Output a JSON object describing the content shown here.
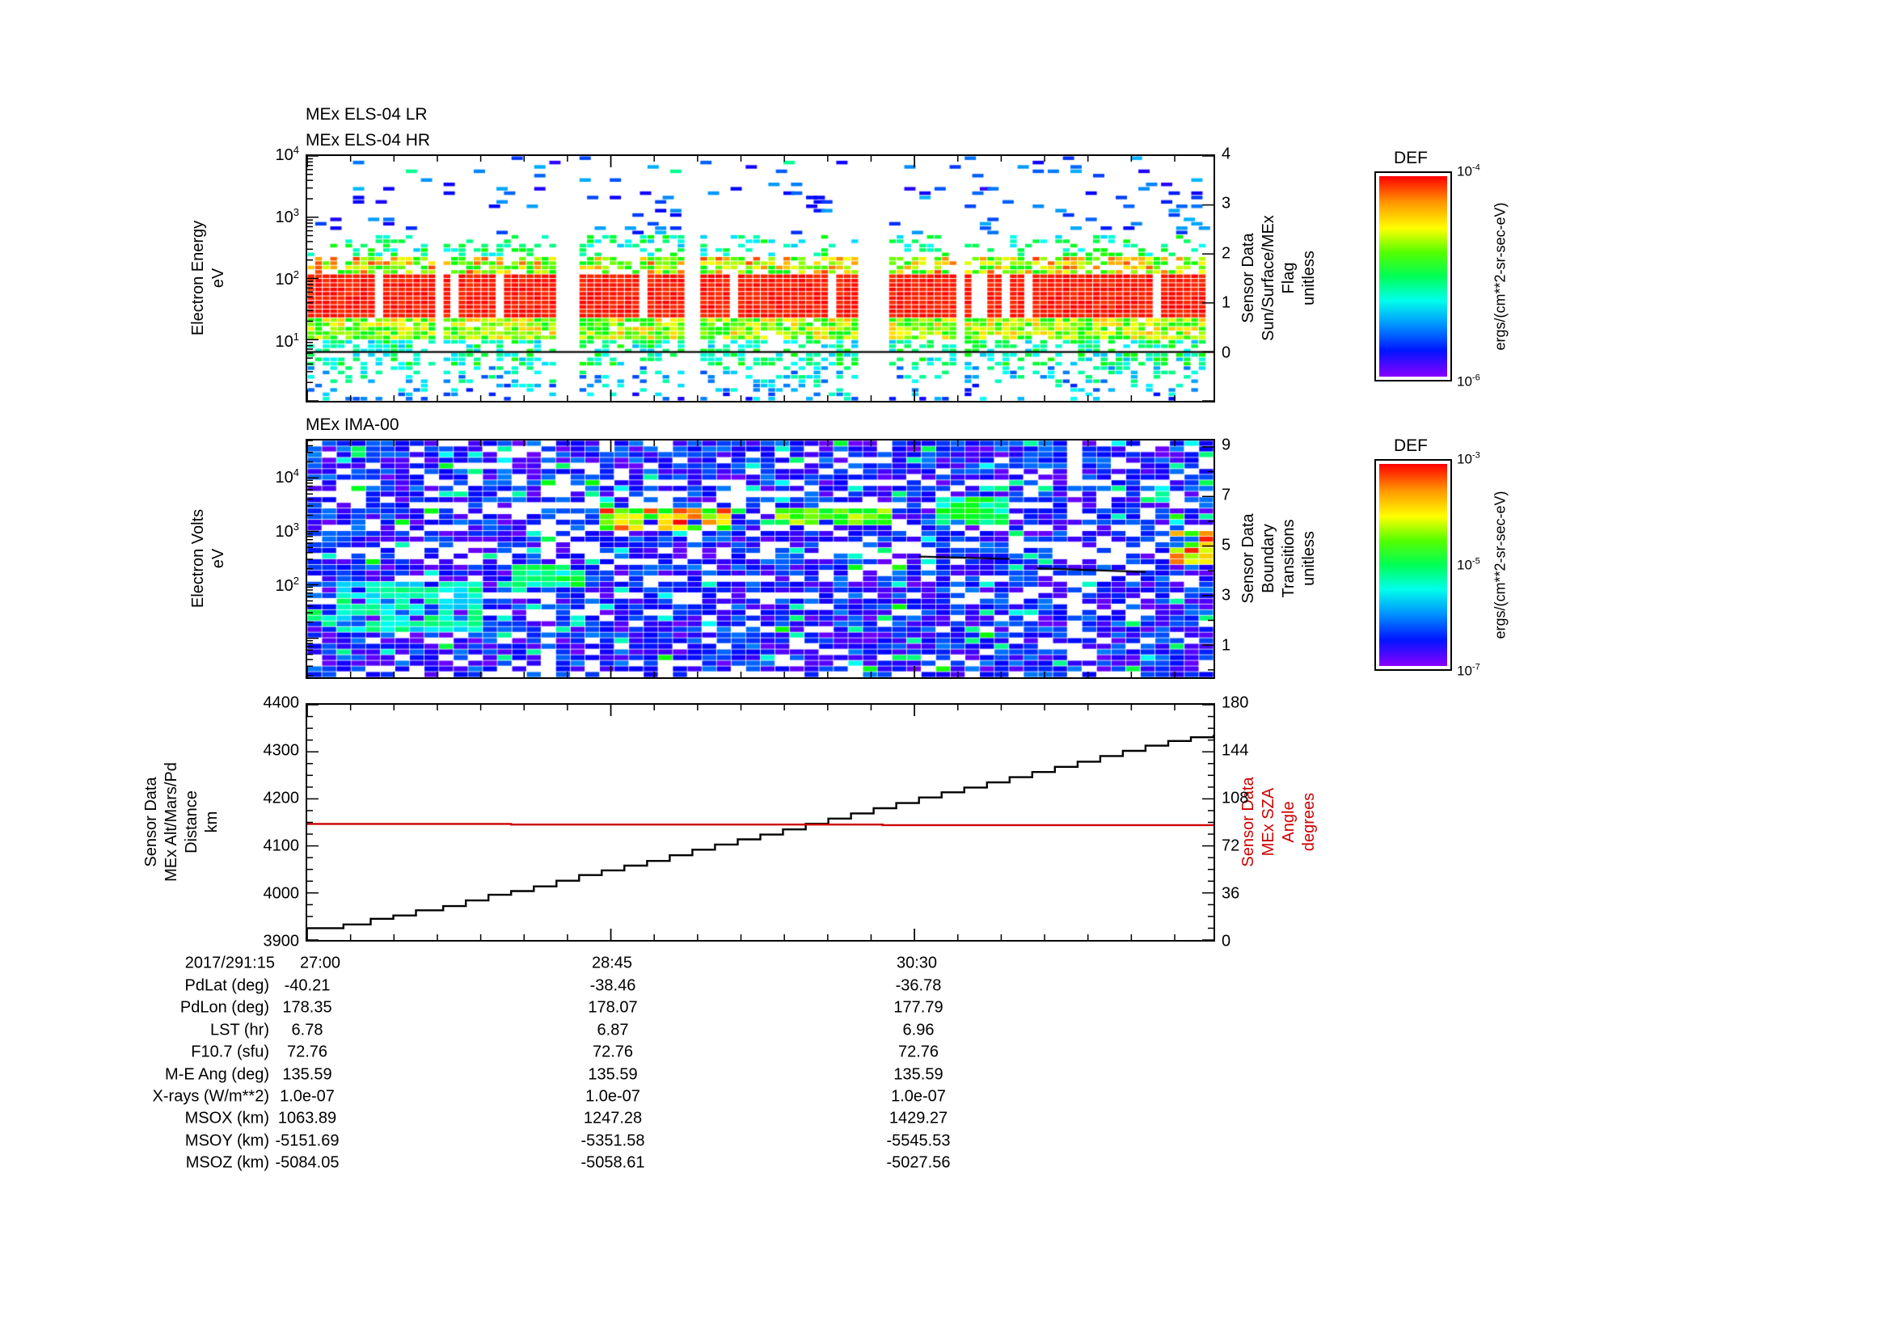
{
  "panels": {
    "els": {
      "title_lr": "MEx ELS-04 LR",
      "title_hr": "MEx ELS-04 HR",
      "ylabel_lines": [
        "Electron Energy",
        "eV"
      ],
      "right_label_lines": [
        "Sensor Data",
        "Sun/Surface/MEx",
        "Flag",
        "unitless"
      ],
      "left_ticks": [
        {
          "t": "10^4",
          "f": 0.0
        },
        {
          "t": "10^3",
          "f": 0.251
        },
        {
          "t": "10^2",
          "f": 0.502
        },
        {
          "t": "10^1",
          "f": 0.752
        }
      ],
      "right_ticks": [
        {
          "t": "4",
          "f": 0.0
        },
        {
          "t": "3",
          "f": 0.2
        },
        {
          "t": "2",
          "f": 0.4
        },
        {
          "t": "1",
          "f": 0.6
        },
        {
          "t": "0",
          "f": 0.8
        }
      ]
    },
    "ima": {
      "title": "MEx IMA-00",
      "ylabel_lines": [
        "Electron Volts",
        "eV"
      ],
      "right_label_lines": [
        "Sensor Data",
        "Boundary",
        "Transitions",
        "unitless"
      ],
      "left_ticks": [
        {
          "t": "10^4",
          "f": 0.158
        },
        {
          "t": "10^3",
          "f": 0.384
        },
        {
          "t": "10^2",
          "f": 0.609
        }
      ],
      "right_ticks": [
        {
          "t": "9",
          "f": 0.027
        },
        {
          "t": "7",
          "f": 0.236
        },
        {
          "t": "5",
          "f": 0.444
        },
        {
          "t": "3",
          "f": 0.653
        },
        {
          "t": "1",
          "f": 0.862
        }
      ]
    },
    "alt": {
      "left_label_lines": [
        "Sensor Data",
        "MEx Alt/Mars/Pd",
        "Distance",
        "km"
      ],
      "right_label_lines": [
        "Sensor Data",
        "MEx SZA",
        "Angle",
        "degrees"
      ],
      "left_ticks": [
        {
          "t": "4400",
          "f": 0.0
        },
        {
          "t": "4300",
          "f": 0.2
        },
        {
          "t": "4200",
          "f": 0.4
        },
        {
          "t": "4100",
          "f": 0.6
        },
        {
          "t": "4000",
          "f": 0.8
        },
        {
          "t": "3900",
          "f": 1.0
        }
      ],
      "right_ticks": [
        {
          "t": "180",
          "f": 0.0
        },
        {
          "t": "144",
          "f": 0.2
        },
        {
          "t": "108",
          "f": 0.4
        },
        {
          "t": "72",
          "f": 0.6
        },
        {
          "t": "36",
          "f": 0.8
        },
        {
          "t": "0",
          "f": 1.0
        }
      ],
      "sza_color": "#cc0000"
    }
  },
  "colorbars": [
    {
      "title": "DEF",
      "unit": "ergs/(cm**2-sr-sec-eV)",
      "ticks": [
        {
          "t": "10^-4",
          "f": 0.0
        },
        {
          "t": "10^-6",
          "f": 1.0
        }
      ]
    },
    {
      "title": "DEF",
      "unit": "ergs/(cm**2-sr-sec-eV)",
      "ticks": [
        {
          "t": "10^-3",
          "f": 0.0
        },
        {
          "t": "10^-5",
          "f": 0.5
        },
        {
          "t": "10^-7",
          "f": 1.0
        }
      ]
    }
  ],
  "xaxis": {
    "header": "2017/291:15",
    "tick_labels": [
      "27:00",
      "28:45",
      "30:30"
    ]
  },
  "table": {
    "rows": [
      {
        "label": "PdLat (deg)",
        "values": [
          "-40.21",
          "-38.46",
          "-36.78"
        ]
      },
      {
        "label": "PdLon (deg)",
        "values": [
          "178.35",
          "178.07",
          "177.79"
        ]
      },
      {
        "label": "LST (hr)",
        "values": [
          "6.78",
          "6.87",
          "6.96"
        ]
      },
      {
        "label": "F10.7 (sfu)",
        "values": [
          "72.76",
          "72.76",
          "72.76"
        ]
      },
      {
        "label": "M-E Ang (deg)",
        "values": [
          "135.59",
          "135.59",
          "135.59"
        ]
      },
      {
        "label": "X-rays (W/m**2)",
        "values": [
          "1.0e-07",
          "1.0e-07",
          "1.0e-07"
        ]
      },
      {
        "label": "MSOX (km)",
        "values": [
          "1063.89",
          "1247.28",
          "1429.27"
        ]
      },
      {
        "label": "MSOY (km)",
        "values": [
          "-5151.69",
          "-5351.58",
          "-5545.53"
        ]
      },
      {
        "label": "MSOZ (km)",
        "values": [
          "-5084.05",
          "-5058.61",
          "-5027.56"
        ]
      }
    ]
  },
  "chart_data": [
    {
      "type": "heatmap",
      "title": "MEx ELS-04 LR / MEx ELS-04 HR",
      "ylabel": "Electron Energy eV",
      "yscale": "log",
      "ylim": [
        1,
        10000
      ],
      "zlabel": "DEF ergs/(cm**2-sr-sec-eV)",
      "zlim": [
        1e-06,
        0.0001
      ],
      "right_axis": {
        "label": "Sensor Data Sun/Surface/MEx Flag unitless",
        "range": [
          -1,
          4
        ],
        "flag_value": 0
      },
      "description": "Electron energy-time spectrogram: intense flux band (red, ~1e-4) between ~20-100 eV across whole interval, moderate flux (green/yellow) at 3-20 eV and 100-300 eV, sparse low-flux (blue) points from 300 eV to 10 keV, periodic vertical white data gaps; horizontal black line marks Sun/Surface/MEx flag value 0.",
      "seed": 1337
    },
    {
      "type": "heatmap",
      "title": "MEx IMA-00",
      "ylabel": "Electron Volts eV",
      "yscale": "log",
      "ylim": [
        2,
        50000
      ],
      "zlabel": "DEF ergs/(cm**2-sr-sec-eV)",
      "zlim": [
        1e-07,
        0.001
      ],
      "right_axis": {
        "label": "Sensor Data Boundary Transitions unitless",
        "range": [
          0,
          9.5
        ]
      },
      "description": "Ion energy-time spectrogram: mosaic of low-flux blue/violet cells with scattered white gaps; enhanced flux (green-yellow-red) patches near ~1 keV at mid-interval and at the right edge; short black boundary-transition trace segments near right-axis value 3.",
      "hot_spots": [
        {
          "x0": 0.33,
          "x1": 0.47,
          "y0": 0.28,
          "y1": 0.38,
          "vmin": 0.55,
          "vmax": 1.0
        },
        {
          "x0": 0.52,
          "x1": 0.64,
          "y0": 0.28,
          "y1": 0.36,
          "vmin": 0.5,
          "vmax": 0.75
        },
        {
          "x0": 0.69,
          "x1": 0.78,
          "y0": 0.24,
          "y1": 0.36,
          "vmin": 0.35,
          "vmax": 0.6
        },
        {
          "x0": 0.945,
          "x1": 1.0,
          "y0": 0.38,
          "y1": 0.52,
          "vmin": 0.6,
          "vmax": 1.0
        },
        {
          "x0": 0.22,
          "x1": 0.3,
          "y0": 0.52,
          "y1": 0.62,
          "vmin": 0.35,
          "vmax": 0.55
        },
        {
          "x0": 0.04,
          "x1": 0.2,
          "y0": 0.6,
          "y1": 0.8,
          "vmin": 0.3,
          "vmax": 0.5
        }
      ],
      "boundary_segments": [
        {
          "x0": 0.675,
          "x1": 0.775,
          "f0": 0.49,
          "f1": 0.5
        },
        {
          "x0": 0.805,
          "x1": 0.925,
          "f0": 0.54,
          "f1": 0.555
        }
      ],
      "seed": 777
    },
    {
      "type": "line",
      "x_start": "27:00",
      "x_ticks": [
        "27:00",
        "28:45",
        "30:30"
      ],
      "x_tick_interval": "1:45",
      "ylim_left": [
        3900,
        4400
      ],
      "ylim_right": [
        0,
        180
      ],
      "series": [
        {
          "name": "MEx Alt/Mars/Pd Distance (km)",
          "axis": "left",
          "style": "step",
          "color": "#000000",
          "points": [
            [
              0.0,
              3925
            ],
            [
              0.02,
              3925
            ],
            [
              0.04,
              3933
            ],
            [
              0.07,
              3945
            ],
            [
              0.095,
              3952
            ],
            [
              0.12,
              3963
            ],
            [
              0.15,
              3972
            ],
            [
              0.175,
              3984
            ],
            [
              0.2,
              3996
            ],
            [
              0.225,
              4004
            ],
            [
              0.25,
              4014
            ],
            [
              0.275,
              4026
            ],
            [
              0.3,
              4038
            ],
            [
              0.325,
              4048
            ],
            [
              0.35,
              4058
            ],
            [
              0.375,
              4068
            ],
            [
              0.4,
              4080
            ],
            [
              0.425,
              4092
            ],
            [
              0.45,
              4103
            ],
            [
              0.475,
              4114
            ],
            [
              0.5,
              4124
            ],
            [
              0.525,
              4135
            ],
            [
              0.55,
              4147
            ],
            [
              0.575,
              4158
            ],
            [
              0.6,
              4169
            ],
            [
              0.625,
              4180
            ],
            [
              0.65,
              4191
            ],
            [
              0.675,
              4203
            ],
            [
              0.7,
              4214
            ],
            [
              0.725,
              4224
            ],
            [
              0.75,
              4235
            ],
            [
              0.775,
              4246
            ],
            [
              0.8,
              4257
            ],
            [
              0.825,
              4268
            ],
            [
              0.85,
              4279
            ],
            [
              0.875,
              4291
            ],
            [
              0.9,
              4302
            ],
            [
              0.925,
              4313
            ],
            [
              0.95,
              4323
            ],
            [
              0.975,
              4331
            ],
            [
              1.0,
              4336
            ]
          ]
        },
        {
          "name": "MEx SZA Angle (degrees)",
          "axis": "right",
          "style": "step",
          "color": "#cc0000",
          "points": [
            [
              0.0,
              88.8
            ],
            [
              0.215,
              88.8
            ],
            [
              0.225,
              88.3
            ],
            [
              0.62,
              88.3
            ],
            [
              0.635,
              87.9
            ],
            [
              1.0,
              87.9
            ]
          ]
        }
      ]
    }
  ]
}
